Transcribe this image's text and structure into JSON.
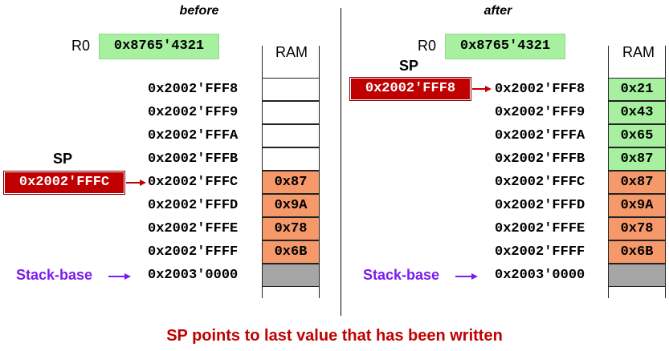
{
  "before": {
    "heading": "before",
    "r0_label": "R0",
    "r0_value": "0x8765'4321",
    "ram_label": "RAM",
    "sp_label": "SP",
    "sp_value": "0x2002'FFFC",
    "stack_base_label": "Stack-base",
    "addresses": [
      "0x2002'FFF8",
      "0x2002'FFF9",
      "0x2002'FFFA",
      "0x2002'FFFB",
      "0x2002'FFFC",
      "0x2002'FFFD",
      "0x2002'FFFE",
      "0x2002'FFFF",
      "0x2003'0000"
    ],
    "cells": [
      "",
      "",
      "",
      "",
      "0x87",
      "0x9A",
      "0x78",
      "0x6B",
      ""
    ],
    "cell_states": [
      "empty",
      "empty",
      "empty",
      "empty",
      "orange",
      "orange",
      "orange",
      "orange",
      "gray"
    ]
  },
  "after": {
    "heading": "after",
    "r0_label": "R0",
    "r0_value": "0x8765'4321",
    "ram_label": "RAM",
    "sp_label": "SP",
    "sp_value": "0x2002'FFF8",
    "stack_base_label": "Stack-base",
    "addresses": [
      "0x2002'FFF8",
      "0x2002'FFF9",
      "0x2002'FFFA",
      "0x2002'FFFB",
      "0x2002'FFFC",
      "0x2002'FFFD",
      "0x2002'FFFE",
      "0x2002'FFFF",
      "0x2003'0000"
    ],
    "cells": [
      "0x21",
      "0x43",
      "0x65",
      "0x87",
      "0x87",
      "0x9A",
      "0x78",
      "0x6B",
      ""
    ],
    "cell_states": [
      "green",
      "green",
      "green",
      "green",
      "orange",
      "orange",
      "orange",
      "orange",
      "gray"
    ]
  },
  "caption": "SP points to last value that has been written",
  "colors": {
    "register_fill": "#a6f0a0",
    "sp_fill": "#c00000",
    "stack_cell": "#f5986a",
    "pushed_cell": "#a6f0a0",
    "base_cell": "#a6a6a6",
    "stack_base_text": "#7a1cf0",
    "caption_text": "#c00000"
  }
}
